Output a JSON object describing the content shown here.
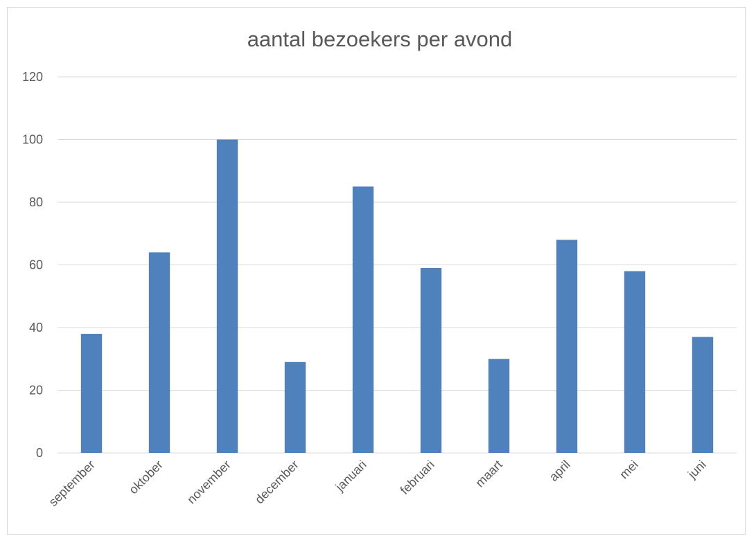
{
  "chart_data": {
    "type": "bar",
    "title": "aantal bezoekers per avond",
    "categories": [
      "september",
      "oktober",
      "november",
      "december",
      "januari",
      "februari",
      "maart",
      "april",
      "mei",
      "juni"
    ],
    "values": [
      38,
      64,
      100,
      29,
      85,
      59,
      30,
      68,
      58,
      37
    ],
    "ylim": [
      0,
      120
    ],
    "yticks": [
      0,
      20,
      40,
      60,
      80,
      100,
      120
    ],
    "grid": true,
    "legend": "none",
    "bar_color": "#4f81bd",
    "xlabel": "",
    "ylabel": ""
  }
}
